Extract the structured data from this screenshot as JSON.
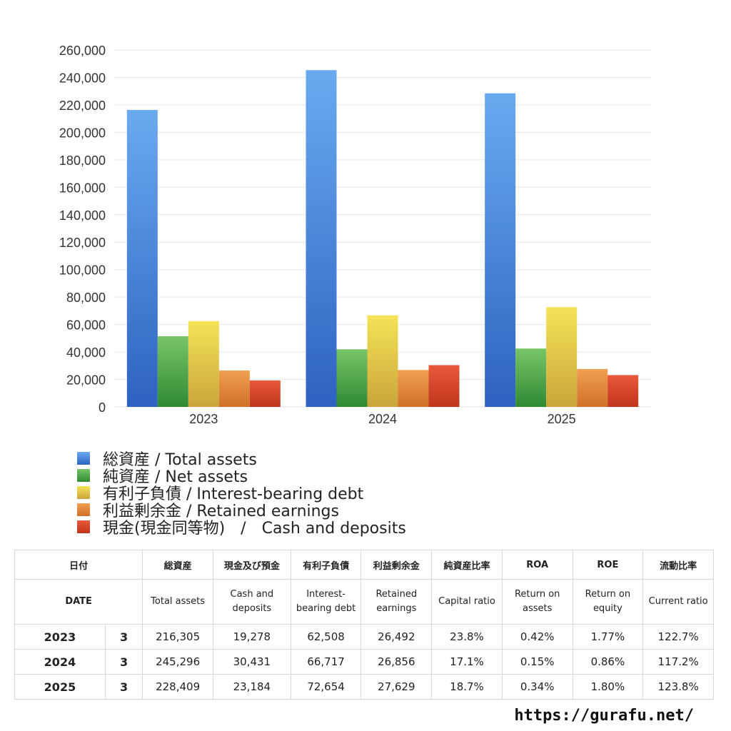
{
  "chart_data": {
    "type": "bar",
    "categories": [
      "2023",
      "2024",
      "2025"
    ],
    "ylim": [
      0,
      260000
    ],
    "yticks": [
      0,
      20000,
      40000,
      60000,
      80000,
      100000,
      120000,
      140000,
      160000,
      180000,
      200000,
      220000,
      240000,
      260000
    ],
    "ytick_labels": [
      "0",
      "20,000",
      "40,000",
      "60,000",
      "80,000",
      "100,000",
      "120,000",
      "140,000",
      "160,000",
      "180,000",
      "200,000",
      "220,000",
      "240,000",
      "260,000"
    ],
    "grid": true,
    "legend_position": "bottom-left",
    "series": [
      {
        "name": "総資産 / Total assets",
        "values": [
          216305,
          245296,
          228409
        ],
        "color_top": "#6aaaf0",
        "color_bottom": "#2d62c0"
      },
      {
        "name": "純資産 / Net assets",
        "values": [
          51500,
          42000,
          42500
        ],
        "color_top": "#79c468",
        "color_bottom": "#2f8a33"
      },
      {
        "name": "有利子負債 / Interest-bearing debt",
        "values": [
          62508,
          66717,
          72654
        ],
        "color_top": "#f5e358",
        "color_bottom": "#c9a53a"
      },
      {
        "name": "利益剰余金 / Retained earnings",
        "values": [
          26492,
          26856,
          27629
        ],
        "color_top": "#f0a050",
        "color_bottom": "#d0702a"
      },
      {
        "name": "現金(現金同等物)　/　Cash and deposits",
        "values": [
          19278,
          30431,
          23184
        ],
        "color_top": "#e85a3a",
        "color_bottom": "#c0341c"
      }
    ]
  },
  "table": {
    "headers_jp": [
      "日付",
      "",
      "総資産",
      "現金及び預金",
      "有利子負債",
      "利益剰余金",
      "純資産比率",
      "ROA",
      "ROE",
      "流動比率"
    ],
    "headers_en": [
      "DATE",
      "",
      "Total assets",
      "Cash and deposits",
      "Interest-bearing debt",
      "Retained earnings",
      "Capital ratio",
      "Return on assets",
      "Return on equity",
      "Current ratio"
    ],
    "rows": [
      [
        "2023",
        "3",
        "216,305",
        "19,278",
        "62,508",
        "26,492",
        "23.8%",
        "0.42%",
        "1.77%",
        "122.7%"
      ],
      [
        "2024",
        "3",
        "245,296",
        "30,431",
        "66,717",
        "26,856",
        "17.1%",
        "0.15%",
        "0.86%",
        "117.2%"
      ],
      [
        "2025",
        "3",
        "228,409",
        "23,184",
        "72,654",
        "27,629",
        "18.7%",
        "0.34%",
        "1.80%",
        "123.8%"
      ]
    ]
  },
  "footer": {
    "url": "https://gurafu.net/"
  }
}
